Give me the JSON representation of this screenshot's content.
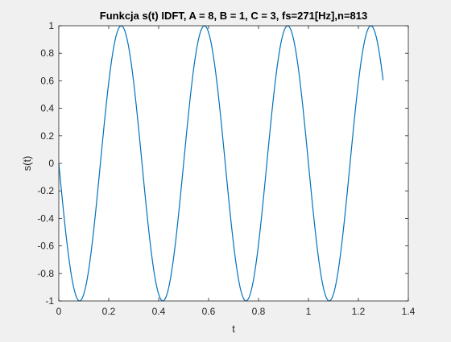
{
  "chart_data": {
    "type": "line",
    "title": "Funkcja s(t) IDFT, A = 8, B = 1, C = 3, fs=271[Hz],n=813",
    "xlabel": "t",
    "ylabel": "s(t)",
    "xlim": [
      0,
      1.4
    ],
    "ylim": [
      -1,
      1
    ],
    "x_ticks": [
      "0",
      "0.2",
      "0.4",
      "0.6",
      "0.8",
      "1",
      "1.2",
      "1.4"
    ],
    "y_ticks": [
      "-1",
      "-0.8",
      "-0.6",
      "-0.4",
      "-0.2",
      "0",
      "0.2",
      "0.4",
      "0.6",
      "0.8",
      "1"
    ],
    "grid": false,
    "series": [
      {
        "color": "#0072bd",
        "function": "y = -sin(2*pi*3*t)",
        "t_start": 0,
        "t_end": 1.2989,
        "sample_rate": 271
      }
    ]
  }
}
